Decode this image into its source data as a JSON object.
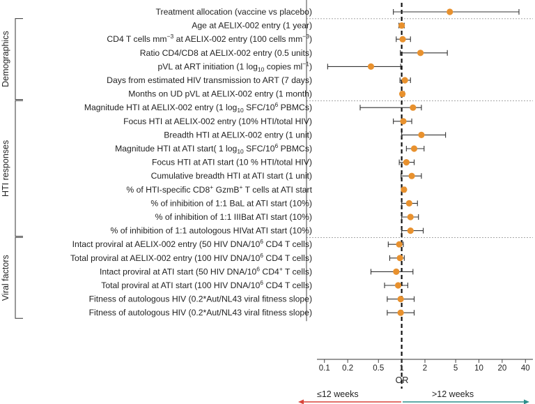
{
  "chart_data": {
    "type": "forest",
    "xlabel": "OR",
    "x_scale": "log",
    "xlim": [
      0.08,
      50
    ],
    "x_ticks": [
      "0.1",
      "0.2",
      "0.5",
      "1",
      "2",
      "5",
      "10",
      "20",
      "40"
    ],
    "x_tick_values": [
      0.1,
      0.2,
      0.5,
      1,
      2,
      5,
      10,
      20,
      40
    ],
    "reference_line": 1,
    "direction_labels": {
      "left": "≤12 weeks",
      "right": ">12 weeks"
    },
    "colors": {
      "point": "#e8912e",
      "left_arrow": "#d9443a",
      "right_arrow": "#2c8f8b",
      "bar": "#333333"
    },
    "groups": [
      {
        "name": "",
        "rows": [
          0,
          0
        ]
      },
      {
        "name": "Demographics",
        "rows": [
          1,
          6
        ]
      },
      {
        "name": "HTI responses",
        "rows": [
          7,
          16
        ]
      },
      {
        "name": "Viral factors",
        "rows": [
          17,
          22
        ]
      }
    ],
    "rows": [
      {
        "label": "Treatment allocation (vaccine vs placebo)",
        "or": 4.2,
        "lo": 0.78,
        "hi": 33
      },
      {
        "label": "Age at AELIX-002 entry (1 year)",
        "or": 1.0,
        "lo": 0.92,
        "hi": 1.08
      },
      {
        "label": "CD4 T cells mm<sup>−3</sup> at AELIX-002 entry (100 cells mm<sup>−3</sup>)",
        "or": 1.03,
        "lo": 0.85,
        "hi": 1.3
      },
      {
        "label": "Ratio CD4/CD8 at AELIX-002 entry (0.5 units)",
        "or": 1.75,
        "lo": 0.96,
        "hi": 3.9
      },
      {
        "label": "pVL at ART initiation (1 log<sub>10</sub> copies ml<sup>−1</sup>)",
        "or": 0.4,
        "lo": 0.11,
        "hi": 0.97
      },
      {
        "label": "Days from estimated HIV transmission to ART (7 days)",
        "or": 1.1,
        "lo": 0.95,
        "hi": 1.3
      },
      {
        "label": "Months on UD pVL at AELIX-002 entry (1 month)",
        "or": 1.02,
        "lo": 0.97,
        "hi": 1.08
      },
      {
        "label": "Magnitude HTI at AELIX-002 entry (1 log<sub>10</sub> SFC/10<sup>6</sup> PBMCs)",
        "or": 1.4,
        "lo": 0.29,
        "hi": 1.8
      },
      {
        "label": "Focus HTI at AELIX-002 entry (10% HTI/total HIV)",
        "or": 1.05,
        "lo": 0.78,
        "hi": 1.35
      },
      {
        "label": "Breadth HTI at AELIX-002 entry (1 unit)",
        "or": 1.8,
        "lo": 1.0,
        "hi": 3.7
      },
      {
        "label": "Magnitude HTI at ATI start( 1 log<sub>10</sub> SFC/10<sup>6</sup> PBMCs)",
        "or": 1.45,
        "lo": 1.15,
        "hi": 1.95
      },
      {
        "label": "Focus HTI at ATI start (10 % HTI/total HIV)",
        "or": 1.15,
        "lo": 0.93,
        "hi": 1.45
      },
      {
        "label": "Cumulative breadth HTI at ATI start (1 unit)",
        "or": 1.35,
        "lo": 0.98,
        "hi": 1.8
      },
      {
        "label": "% of HTI-specific CD8<sup>+</sup> GzmB<sup>+</sup> T cells at ATI start",
        "or": 1.07,
        "lo": 0.99,
        "hi": 1.12
      },
      {
        "label": "% of inhibition of 1:1 BaL at ATI start (10%)",
        "or": 1.25,
        "lo": 1.0,
        "hi": 1.6
      },
      {
        "label": "% of inhibition of 1:1 IIIBat ATI start (10%)",
        "or": 1.3,
        "lo": 1.0,
        "hi": 1.65
      },
      {
        "label": "% of inhibition of 1:1 autologous HIVat ATI start (10%)",
        "or": 1.3,
        "lo": 1.0,
        "hi": 1.9
      },
      {
        "label": "Intact proviral at AELIX-002 entry (50 HIV DNA/10<sup>6</sup> CD4 T cells)",
        "or": 0.93,
        "lo": 0.67,
        "hi": 1.05
      },
      {
        "label": "Total proviral at AELIX-002 entry (100 HIV DNA/10<sup>6</sup> CD4 T cells)",
        "or": 0.95,
        "lo": 0.7,
        "hi": 1.08
      },
      {
        "label": "Intact proviral at ATI start (50 HIV DNA/10<sup>6</sup> CD4<sup>+</sup> T cells)",
        "or": 0.85,
        "lo": 0.4,
        "hi": 1.4
      },
      {
        "label": "Total proviral at ATI start (100 HIV DNA/10<sup>6</sup> CD4 T cells)",
        "or": 0.9,
        "lo": 0.6,
        "hi": 1.2
      },
      {
        "label": "Fitness of autologous HIV (0.2*Aut/NL43 viral fitness slope)",
        "or": 0.97,
        "lo": 0.65,
        "hi": 1.45
      },
      {
        "label": "Fitness of autologous HIV (0.2*Aut/NL43 viral fitness slope)",
        "or": 0.97,
        "lo": 0.65,
        "hi": 1.45
      }
    ]
  }
}
